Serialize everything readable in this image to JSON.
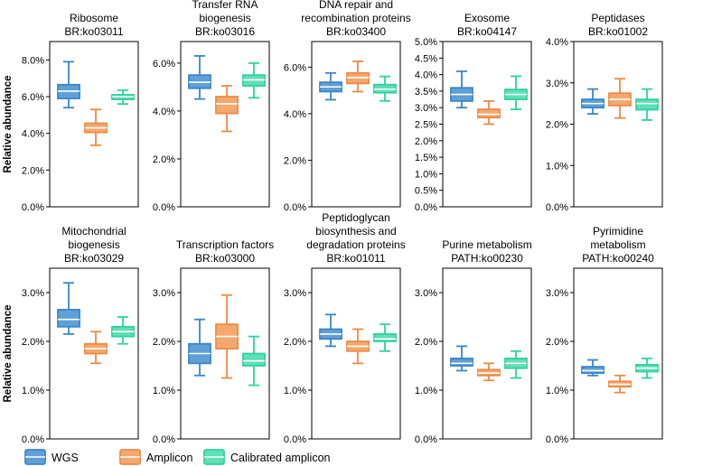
{
  "chart_data": {
    "type": "boxplot",
    "y_axis_label": "Relative abundance",
    "legend": [
      {
        "name": "WGS",
        "color": "#3b86c8",
        "fill": "#5fa0d6"
      },
      {
        "name": "Amplicon",
        "color": "#ee8a45",
        "fill": "#f4a86e"
      },
      {
        "name": "Calibrated amplicon",
        "color": "#2fd19e",
        "fill": "#5fe0b6"
      }
    ],
    "panels": [
      {
        "title": [
          "Ribosome",
          "BR:ko03011"
        ],
        "ylim": [
          0,
          9.0
        ],
        "ticks": [
          0,
          2,
          4,
          6,
          8
        ],
        "tick_labels": [
          "0.0%",
          "2.0%",
          "4.0%",
          "6.0%",
          "8.0%"
        ],
        "boxes": [
          {
            "series": "WGS",
            "min": 5.4,
            "q1": 5.9,
            "median": 6.3,
            "q3": 6.65,
            "max": 7.9
          },
          {
            "series": "Amplicon",
            "min": 3.35,
            "q1": 4.05,
            "median": 4.3,
            "q3": 4.55,
            "max": 5.3
          },
          {
            "series": "Calibrated amplicon",
            "min": 5.6,
            "q1": 5.85,
            "median": 6.0,
            "q3": 6.1,
            "max": 6.35
          }
        ]
      },
      {
        "title": [
          "Transfer RNA",
          "biogenesis",
          "BR:ko03016"
        ],
        "ylim": [
          0,
          6.9
        ],
        "ticks": [
          0,
          2,
          4,
          6
        ],
        "tick_labels": [
          "0.0%",
          "2.0%",
          "4.0%",
          "6.0%"
        ],
        "boxes": [
          {
            "series": "WGS",
            "min": 4.5,
            "q1": 4.95,
            "median": 5.2,
            "q3": 5.5,
            "max": 6.3
          },
          {
            "series": "Amplicon",
            "min": 3.15,
            "q1": 3.9,
            "median": 4.3,
            "q3": 4.6,
            "max": 5.05
          },
          {
            "series": "Calibrated amplicon",
            "min": 4.55,
            "q1": 5.05,
            "median": 5.3,
            "q3": 5.5,
            "max": 6.0
          }
        ]
      },
      {
        "title": [
          "DNA repair and",
          "recombination proteins",
          "BR:ko03400"
        ],
        "ylim": [
          0,
          7.1
        ],
        "ticks": [
          0,
          2,
          4,
          6
        ],
        "tick_labels": [
          "0.0%",
          "2.0%",
          "4.0%",
          "6.0%"
        ],
        "boxes": [
          {
            "series": "WGS",
            "min": 4.6,
            "q1": 4.95,
            "median": 5.15,
            "q3": 5.35,
            "max": 5.75
          },
          {
            "series": "Amplicon",
            "min": 4.95,
            "q1": 5.3,
            "median": 5.55,
            "q3": 5.75,
            "max": 6.25
          },
          {
            "series": "Calibrated amplicon",
            "min": 4.55,
            "q1": 4.9,
            "median": 5.05,
            "q3": 5.25,
            "max": 5.6
          }
        ]
      },
      {
        "title": [
          "Exosome",
          "BR:ko04147"
        ],
        "ylim": [
          0,
          5.0
        ],
        "ticks": [
          0,
          0.5,
          1,
          1.5,
          2,
          2.5,
          3,
          3.5,
          4,
          4.5,
          5
        ],
        "tick_labels": [
          "0.0%",
          "0.5%",
          "1.0%",
          "1.5%",
          "2.0%",
          "2.5%",
          "3.0%",
          "3.5%",
          "4.0%",
          "4.5%",
          "5.0%"
        ],
        "boxes": [
          {
            "series": "WGS",
            "min": 3.0,
            "q1": 3.2,
            "median": 3.4,
            "q3": 3.6,
            "max": 4.1
          },
          {
            "series": "Amplicon",
            "min": 2.5,
            "q1": 2.7,
            "median": 2.8,
            "q3": 2.95,
            "max": 3.2
          },
          {
            "series": "Calibrated amplicon",
            "min": 2.95,
            "q1": 3.25,
            "median": 3.4,
            "q3": 3.55,
            "max": 3.95
          }
        ]
      },
      {
        "title": [
          "Peptidases",
          "BR:ko01002"
        ],
        "ylim": [
          0,
          4.0
        ],
        "ticks": [
          0,
          1,
          2,
          3,
          4
        ],
        "tick_labels": [
          "0.0%",
          "1.0%",
          "2.0%",
          "3.0%",
          "4.0%"
        ],
        "boxes": [
          {
            "series": "WGS",
            "min": 2.25,
            "q1": 2.4,
            "median": 2.5,
            "q3": 2.6,
            "max": 2.85
          },
          {
            "series": "Amplicon",
            "min": 2.15,
            "q1": 2.45,
            "median": 2.6,
            "q3": 2.75,
            "max": 3.1
          },
          {
            "series": "Calibrated amplicon",
            "min": 2.1,
            "q1": 2.35,
            "median": 2.5,
            "q3": 2.6,
            "max": 2.85
          }
        ]
      },
      {
        "title": [
          "Mitochondrial",
          "biogenesis",
          "BR:ko03029"
        ],
        "ylim": [
          0,
          3.5
        ],
        "ticks": [
          0,
          1,
          2,
          3
        ],
        "tick_labels": [
          "0.0%",
          "1.0%",
          "2.0%",
          "3.0%"
        ],
        "boxes": [
          {
            "series": "WGS",
            "min": 2.15,
            "q1": 2.3,
            "median": 2.45,
            "q3": 2.65,
            "max": 3.2
          },
          {
            "series": "Amplicon",
            "min": 1.55,
            "q1": 1.75,
            "median": 1.85,
            "q3": 1.95,
            "max": 2.2
          },
          {
            "series": "Calibrated amplicon",
            "min": 1.95,
            "q1": 2.1,
            "median": 2.2,
            "q3": 2.3,
            "max": 2.5
          }
        ]
      },
      {
        "title": [
          "Transcription factors",
          "BR:ko03000"
        ],
        "ylim": [
          0,
          3.5
        ],
        "ticks": [
          0,
          1,
          2,
          3
        ],
        "tick_labels": [
          "0.0%",
          "1.0%",
          "2.0%",
          "3.0%"
        ],
        "boxes": [
          {
            "series": "WGS",
            "min": 1.3,
            "q1": 1.55,
            "median": 1.75,
            "q3": 1.95,
            "max": 2.45
          },
          {
            "series": "Amplicon",
            "min": 1.25,
            "q1": 1.85,
            "median": 2.1,
            "q3": 2.35,
            "max": 2.95
          },
          {
            "series": "Calibrated amplicon",
            "min": 1.1,
            "q1": 1.5,
            "median": 1.6,
            "q3": 1.75,
            "max": 2.1
          }
        ]
      },
      {
        "title": [
          "Peptidoglycan",
          "biosynthesis and",
          "degradation proteins",
          "BR:ko01011"
        ],
        "ylim": [
          0,
          3.5
        ],
        "ticks": [
          0,
          1,
          2,
          3
        ],
        "tick_labels": [
          "0.0%",
          "1.0%",
          "2.0%",
          "3.0%"
        ],
        "boxes": [
          {
            "series": "WGS",
            "min": 1.9,
            "q1": 2.05,
            "median": 2.15,
            "q3": 2.25,
            "max": 2.55
          },
          {
            "series": "Amplicon",
            "min": 1.55,
            "q1": 1.8,
            "median": 1.9,
            "q3": 2.0,
            "max": 2.25
          },
          {
            "series": "Calibrated amplicon",
            "min": 1.8,
            "q1": 2.0,
            "median": 2.05,
            "q3": 2.15,
            "max": 2.35
          }
        ]
      },
      {
        "title": [
          "Purine metabolism",
          "PATH:ko00230"
        ],
        "ylim": [
          0,
          3.5
        ],
        "ticks": [
          0,
          1,
          2,
          3
        ],
        "tick_labels": [
          "0.0%",
          "1.0%",
          "2.0%",
          "3.0%"
        ],
        "boxes": [
          {
            "series": "WGS",
            "min": 1.4,
            "q1": 1.5,
            "median": 1.55,
            "q3": 1.65,
            "max": 1.9
          },
          {
            "series": "Amplicon",
            "min": 1.2,
            "q1": 1.3,
            "median": 1.35,
            "q3": 1.42,
            "max": 1.55
          },
          {
            "series": "Calibrated amplicon",
            "min": 1.25,
            "q1": 1.45,
            "median": 1.55,
            "q3": 1.65,
            "max": 1.8
          }
        ]
      },
      {
        "title": [
          "Pyrimidine",
          "metabolism",
          "PATH:ko00240"
        ],
        "ylim": [
          0,
          3.5
        ],
        "ticks": [
          0,
          1,
          2,
          3
        ],
        "tick_labels": [
          "0.0%",
          "1.0%",
          "2.0%",
          "3.0%"
        ],
        "boxes": [
          {
            "series": "WGS",
            "min": 1.3,
            "q1": 1.35,
            "median": 1.4,
            "q3": 1.48,
            "max": 1.62
          },
          {
            "series": "Amplicon",
            "min": 0.95,
            "q1": 1.07,
            "median": 1.12,
            "q3": 1.18,
            "max": 1.3
          },
          {
            "series": "Calibrated amplicon",
            "min": 1.25,
            "q1": 1.38,
            "median": 1.45,
            "q3": 1.52,
            "max": 1.65
          }
        ]
      }
    ]
  }
}
